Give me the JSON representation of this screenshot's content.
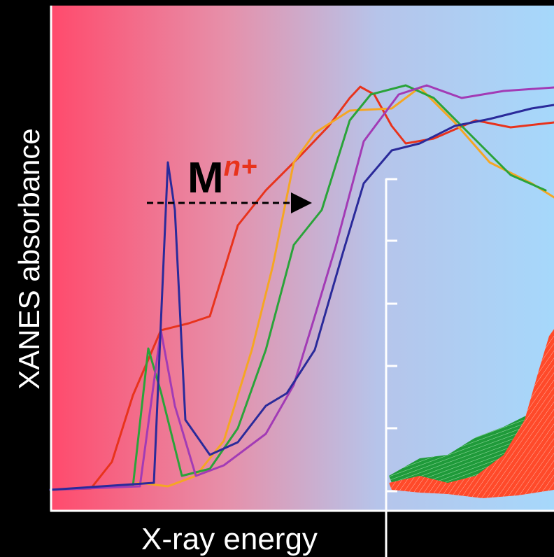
{
  "axes": {
    "y_label": "XANES absorbance",
    "x_label": "X-ray energy"
  },
  "annotation": {
    "base": "M",
    "superscript": "n+"
  }
}
